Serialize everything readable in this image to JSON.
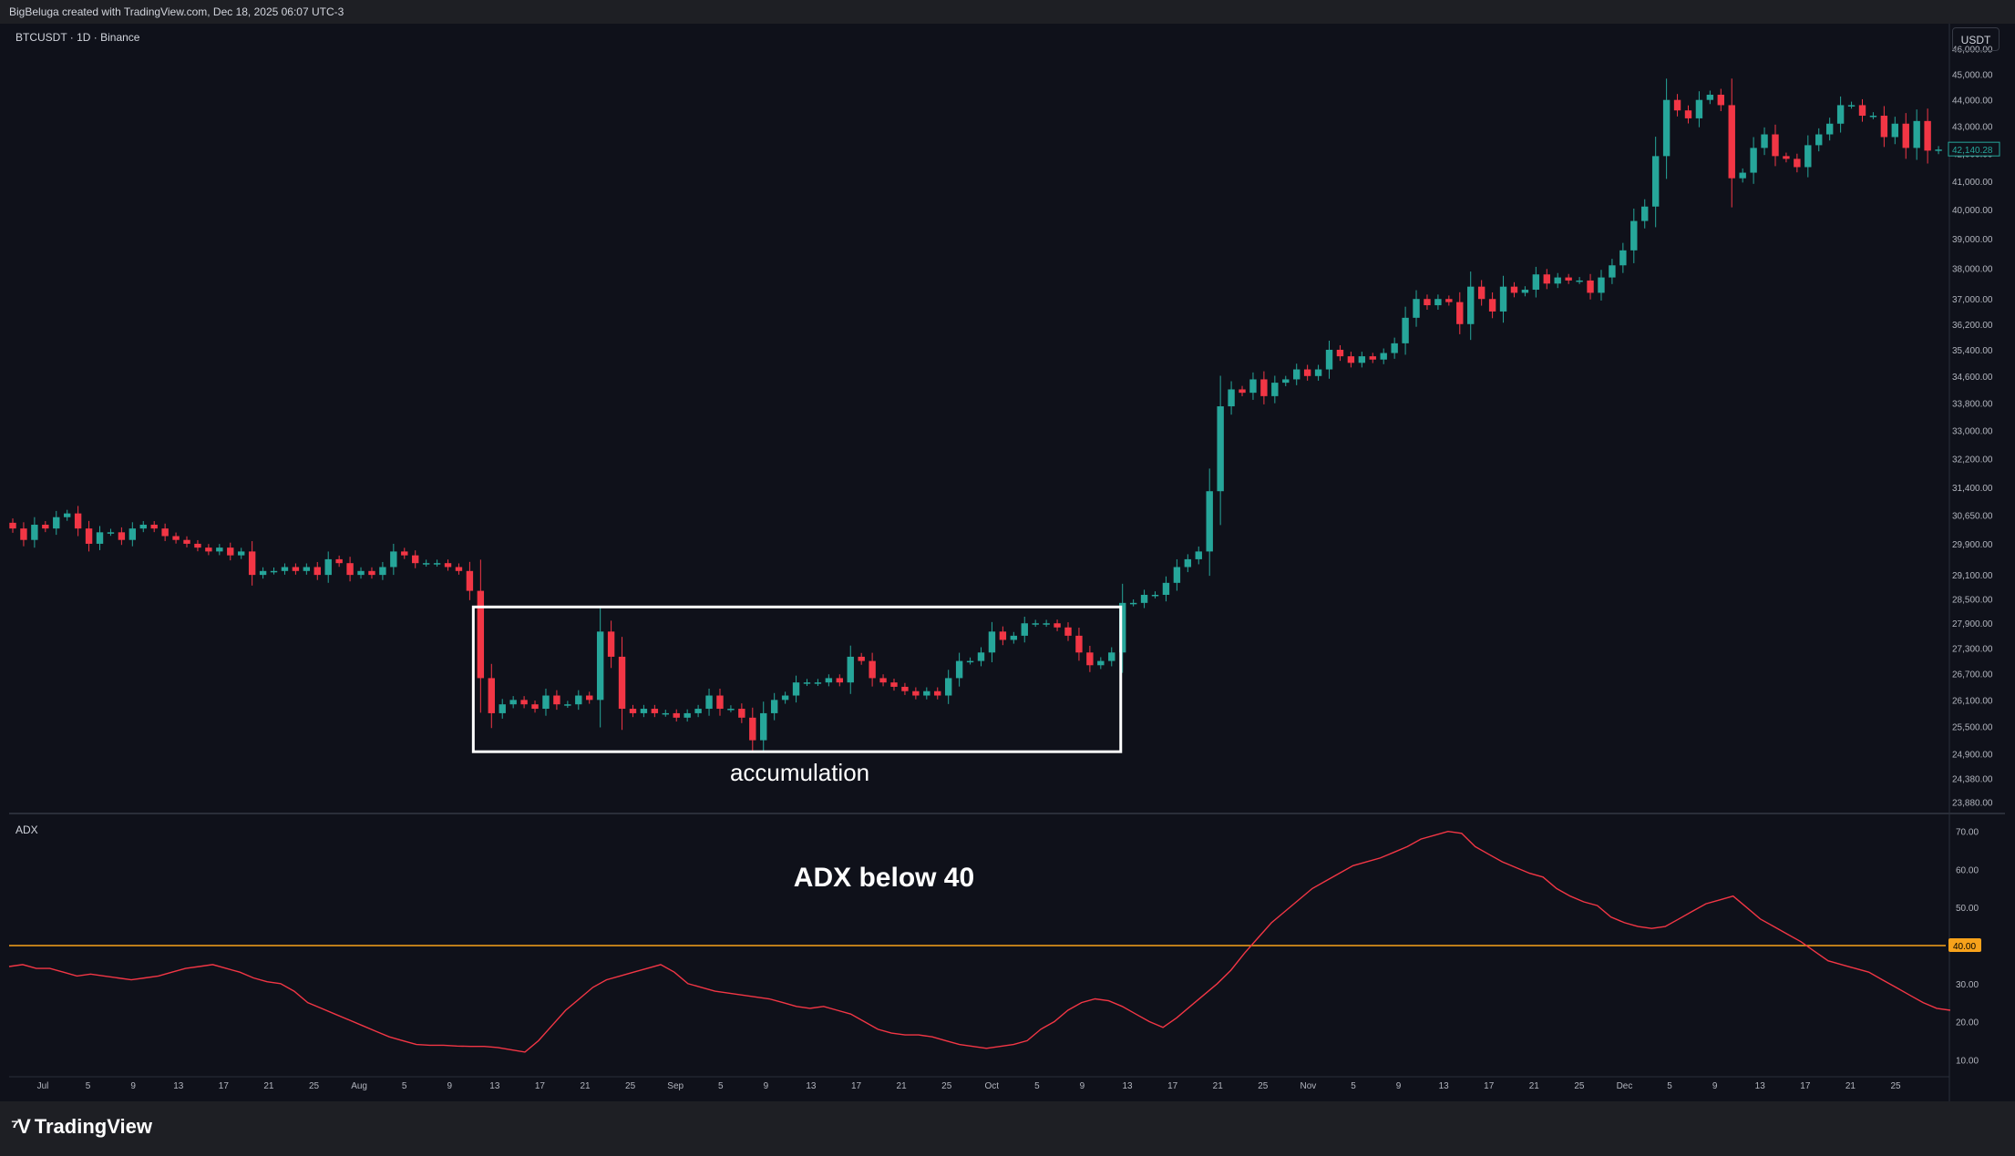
{
  "header": {
    "attribution": "BigBeluga created with TradingView.com, Dec 18, 2025 06:07 UTC-3"
  },
  "symbol_label": "BTCUSDT · 1D · Binance",
  "currency_button": "USDT",
  "last_price_label": "42,140.28",
  "threshold_label": "40.00",
  "adx_panel_label": "ADX",
  "annotations": {
    "box_label": "accumulation",
    "adx_text": "ADX below 40"
  },
  "brand": {
    "name": "TradingView"
  },
  "colors": {
    "up": "#26a69a",
    "down": "#f23645",
    "adx": "#f23645",
    "threshold": "#f7a21b",
    "box": "#ffffff"
  },
  "chart_data": [
    {
      "type": "candlestick",
      "title": "",
      "x_tick_labels": [
        "Jul",
        "5",
        "9",
        "13",
        "17",
        "21",
        "25",
        "Aug",
        "5",
        "9",
        "13",
        "17",
        "21",
        "25",
        "Sep",
        "5",
        "9",
        "13",
        "17",
        "21",
        "25",
        "Oct",
        "5",
        "9",
        "13",
        "17",
        "21",
        "25",
        "Nov",
        "5",
        "9",
        "13",
        "17",
        "21",
        "25",
        "Dec",
        "5",
        "9",
        "13",
        "17",
        "21",
        "25"
      ],
      "y_tick_labels": [
        "46,000.00",
        "45,000.00",
        "44,000.00",
        "43,000.00",
        "42,000.00",
        "41,000.00",
        "40,000.00",
        "39,000.00",
        "38,000.00",
        "37,000.00",
        "36,200.00",
        "35,400.00",
        "34,600.00",
        "33,800.00",
        "33,000.00",
        "32,200.00",
        "31,400.00",
        "30,650.00",
        "29,900.00",
        "29,100.00",
        "28,500.00",
        "27,900.00",
        "27,300.00",
        "26,700.00",
        "26,100.00",
        "25,500.00",
        "24,900.00",
        "24,380.00",
        "23,880.00"
      ],
      "y_scale": "log",
      "ylim": [
        23700,
        46500
      ],
      "closes": [
        30300,
        30000,
        30400,
        30300,
        30600,
        30700,
        30300,
        29900,
        30200,
        30200,
        30000,
        30300,
        30400,
        30300,
        30100,
        30000,
        29900,
        29800,
        29700,
        29800,
        29600,
        29700,
        29100,
        29200,
        29200,
        29300,
        29200,
        29300,
        29100,
        29500,
        29400,
        29100,
        29200,
        29100,
        29300,
        29700,
        29600,
        29400,
        29400,
        29400,
        29300,
        29200,
        28700,
        26600,
        25800,
        26000,
        26100,
        26000,
        25900,
        26200,
        26000,
        26000,
        26200,
        26100,
        27700,
        27100,
        25900,
        25800,
        25900,
        25800,
        25800,
        25700,
        25800,
        25900,
        26200,
        25900,
        25900,
        25700,
        25200,
        25800,
        26100,
        26200,
        26500,
        26500,
        26500,
        26600,
        26500,
        27100,
        27000,
        26600,
        26500,
        26400,
        26300,
        26200,
        26300,
        26200,
        26600,
        27000,
        27000,
        27200,
        27700,
        27500,
        27600,
        27900,
        27900,
        27900,
        27800,
        27600,
        27200,
        26900,
        27000,
        27200,
        28400,
        28400,
        28600,
        28600,
        28900,
        29300,
        29500,
        29700,
        31300,
        33700,
        34200,
        34100,
        34500,
        34000,
        34400,
        34500,
        34800,
        34600,
        34800,
        35400,
        35200,
        35000,
        35200,
        35100,
        35300,
        35600,
        36400,
        37000,
        36800,
        37000,
        36900,
        36200,
        37400,
        37000,
        36600,
        37400,
        37200,
        37300,
        37800,
        37500,
        37700,
        37600,
        37600,
        37200,
        37700,
        38100,
        38600,
        39600,
        40100,
        41900,
        44000,
        43600,
        43300,
        44000,
        44200,
        43800,
        41100,
        41300,
        42200,
        42700,
        41900,
        41800,
        41500,
        42300,
        42700,
        43100,
        43800,
        43800,
        43400,
        43400,
        42600,
        43100,
        42200,
        43200,
        42100,
        42140
      ],
      "series": [
        {
          "name": "BTCUSDT",
          "values": []
        }
      ]
    },
    {
      "type": "line",
      "title": "",
      "y_tick_labels": [
        "70.00",
        "60.00",
        "50.00",
        "40.00",
        "30.00",
        "20.00",
        "10.00"
      ],
      "ylim": [
        6,
        74
      ],
      "threshold": 40,
      "series": [
        {
          "name": "ADX",
          "values": [
            34.5,
            35,
            34,
            34,
            33,
            32,
            32.5,
            32,
            31.5,
            31,
            31.5,
            32,
            33,
            34,
            34.5,
            35,
            34,
            33,
            31.5,
            30.5,
            30,
            28,
            25,
            23.5,
            22,
            20.5,
            19,
            17.5,
            16,
            15,
            14,
            13.8,
            13.8,
            13.6,
            13.5,
            13.5,
            13.2,
            12.6,
            12,
            15,
            19,
            23,
            26,
            29,
            31,
            32,
            33,
            34,
            35,
            33,
            30,
            29,
            28,
            27.5,
            27,
            26.5,
            26,
            25,
            24,
            23.5,
            24,
            23,
            22,
            20,
            18,
            17,
            16.5,
            16.5,
            16,
            15,
            14,
            13.5,
            13,
            13.5,
            14,
            15,
            18,
            20,
            23,
            25,
            26,
            25.5,
            24,
            22,
            20,
            18.5,
            21,
            24,
            27,
            30,
            33.5,
            38,
            42,
            46,
            49,
            52,
            55,
            57,
            59,
            61,
            62,
            63,
            64.5,
            66,
            68,
            69,
            70,
            69.5,
            66,
            64,
            62,
            60.5,
            59,
            58,
            55,
            53,
            51.5,
            50.5,
            47.5,
            46,
            45,
            44.5,
            45,
            47,
            49,
            51,
            52,
            53,
            50,
            47,
            45,
            43,
            41,
            38.5,
            36,
            35,
            34,
            33,
            31,
            29,
            27,
            25,
            23.5,
            23
          ]
        }
      ]
    }
  ]
}
